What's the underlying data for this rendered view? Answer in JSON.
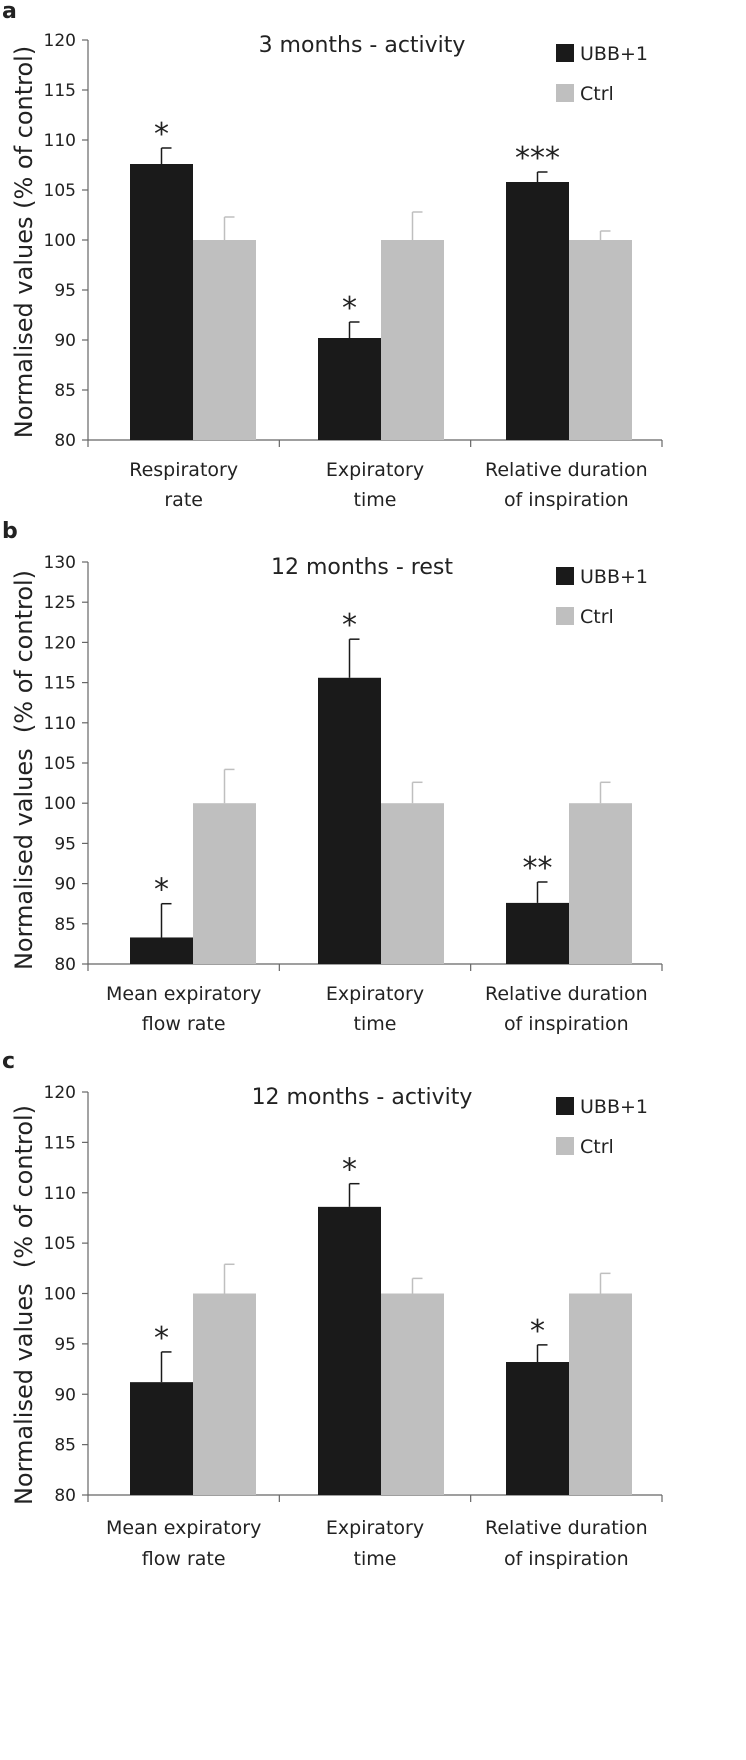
{
  "colors": {
    "ubb": "#1a1a1a",
    "ctrl": "#bfbfbf",
    "axis": "#666666",
    "text": "#222222"
  },
  "chart_data": [
    {
      "panel_label": "a",
      "type": "bar",
      "title": "3 months - activity",
      "ylabel": "Normalised values (% of control)",
      "xlabel": "",
      "ylim": [
        80,
        120
      ],
      "yticks": [
        80,
        85,
        90,
        95,
        100,
        105,
        110,
        115,
        120
      ],
      "categories": [
        [
          "Respiratory",
          "rate"
        ],
        [
          "Expiratory",
          "time"
        ],
        [
          "Relative duration",
          "of inspiration"
        ]
      ],
      "legend": [
        "UBB+1",
        "Ctrl"
      ],
      "legend_position": "top-right",
      "series": [
        {
          "name": "UBB+1",
          "values": [
            107.6,
            90.2,
            105.8
          ],
          "errors": [
            1.6,
            1.6,
            1.0
          ],
          "significance": [
            "*",
            "*",
            "***"
          ]
        },
        {
          "name": "Ctrl",
          "values": [
            100,
            100,
            100
          ],
          "errors": [
            2.3,
            2.8,
            0.9
          ],
          "significance": [
            "",
            "",
            ""
          ]
        }
      ]
    },
    {
      "panel_label": "b",
      "type": "bar",
      "title": "12 months - rest",
      "ylabel": "Normalised values  (% of control)",
      "xlabel": "",
      "ylim": [
        80,
        130
      ],
      "yticks": [
        80,
        85,
        90,
        95,
        100,
        105,
        110,
        115,
        120,
        125,
        130
      ],
      "categories": [
        [
          "Mean expiratory",
          "flow rate"
        ],
        [
          "Expiratory",
          "time"
        ],
        [
          "Relative duration",
          "of inspiration"
        ]
      ],
      "legend": [
        "UBB+1",
        "Ctrl"
      ],
      "legend_position": "top-right",
      "series": [
        {
          "name": "UBB+1",
          "values": [
            83.3,
            115.6,
            87.6
          ],
          "errors": [
            4.2,
            4.8,
            2.6
          ],
          "significance": [
            "*",
            "*",
            "**"
          ]
        },
        {
          "name": "Ctrl",
          "values": [
            100,
            100,
            100
          ],
          "errors": [
            4.2,
            2.6,
            2.6
          ],
          "significance": [
            "",
            "",
            ""
          ]
        }
      ]
    },
    {
      "panel_label": "c",
      "type": "bar",
      "title": "12 months - activity",
      "ylabel": "Normalised values  (% of control)",
      "xlabel": "",
      "ylim": [
        80,
        120
      ],
      "yticks": [
        80,
        85,
        90,
        95,
        100,
        105,
        110,
        115,
        120
      ],
      "categories": [
        [
          "Mean expiratory",
          "flow rate"
        ],
        [
          "Expiratory",
          "time"
        ],
        [
          "Relative duration",
          "of inspiration"
        ]
      ],
      "legend": [
        "UBB+1",
        "Ctrl"
      ],
      "legend_position": "top-right",
      "series": [
        {
          "name": "UBB+1",
          "values": [
            91.2,
            108.6,
            93.2
          ],
          "errors": [
            3.0,
            2.3,
            1.7
          ],
          "significance": [
            "*",
            "*",
            "*"
          ]
        },
        {
          "name": "Ctrl",
          "values": [
            100,
            100,
            100
          ],
          "errors": [
            2.9,
            1.5,
            2.0
          ],
          "significance": [
            "",
            "",
            ""
          ]
        }
      ]
    }
  ]
}
